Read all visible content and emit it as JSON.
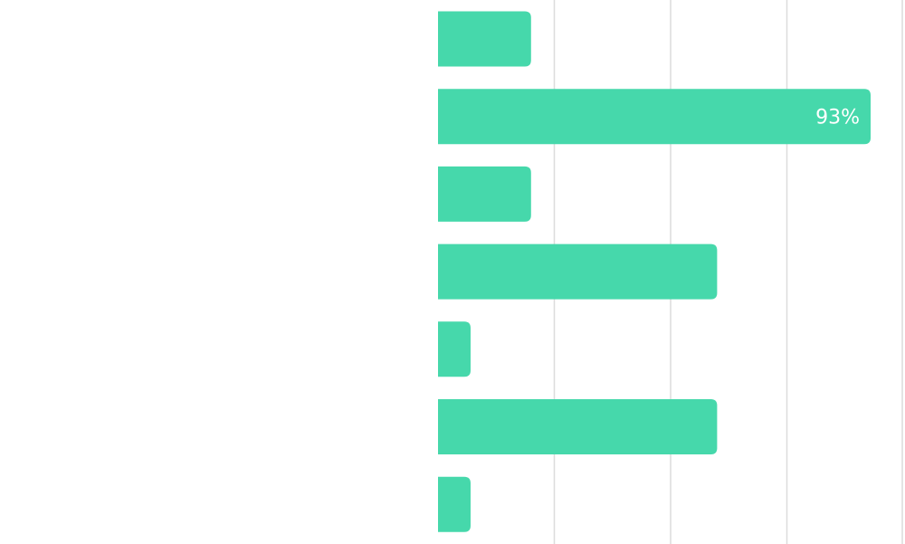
{
  "chart_data": {
    "type": "bar",
    "orientation": "horizontal",
    "categories": [
      "",
      "",
      "",
      "",
      "",
      "",
      ""
    ],
    "values": [
      20,
      93,
      20,
      60,
      7,
      60,
      7
    ],
    "data_labels": [
      "",
      "93%",
      "",
      "",
      "",
      "",
      ""
    ],
    "xlim": [
      0,
      100
    ],
    "grid": true,
    "bar_color": "#46d8ab",
    "grid_color": "#dcdcdc",
    "title": "",
    "xlabel": "",
    "ylabel": ""
  }
}
